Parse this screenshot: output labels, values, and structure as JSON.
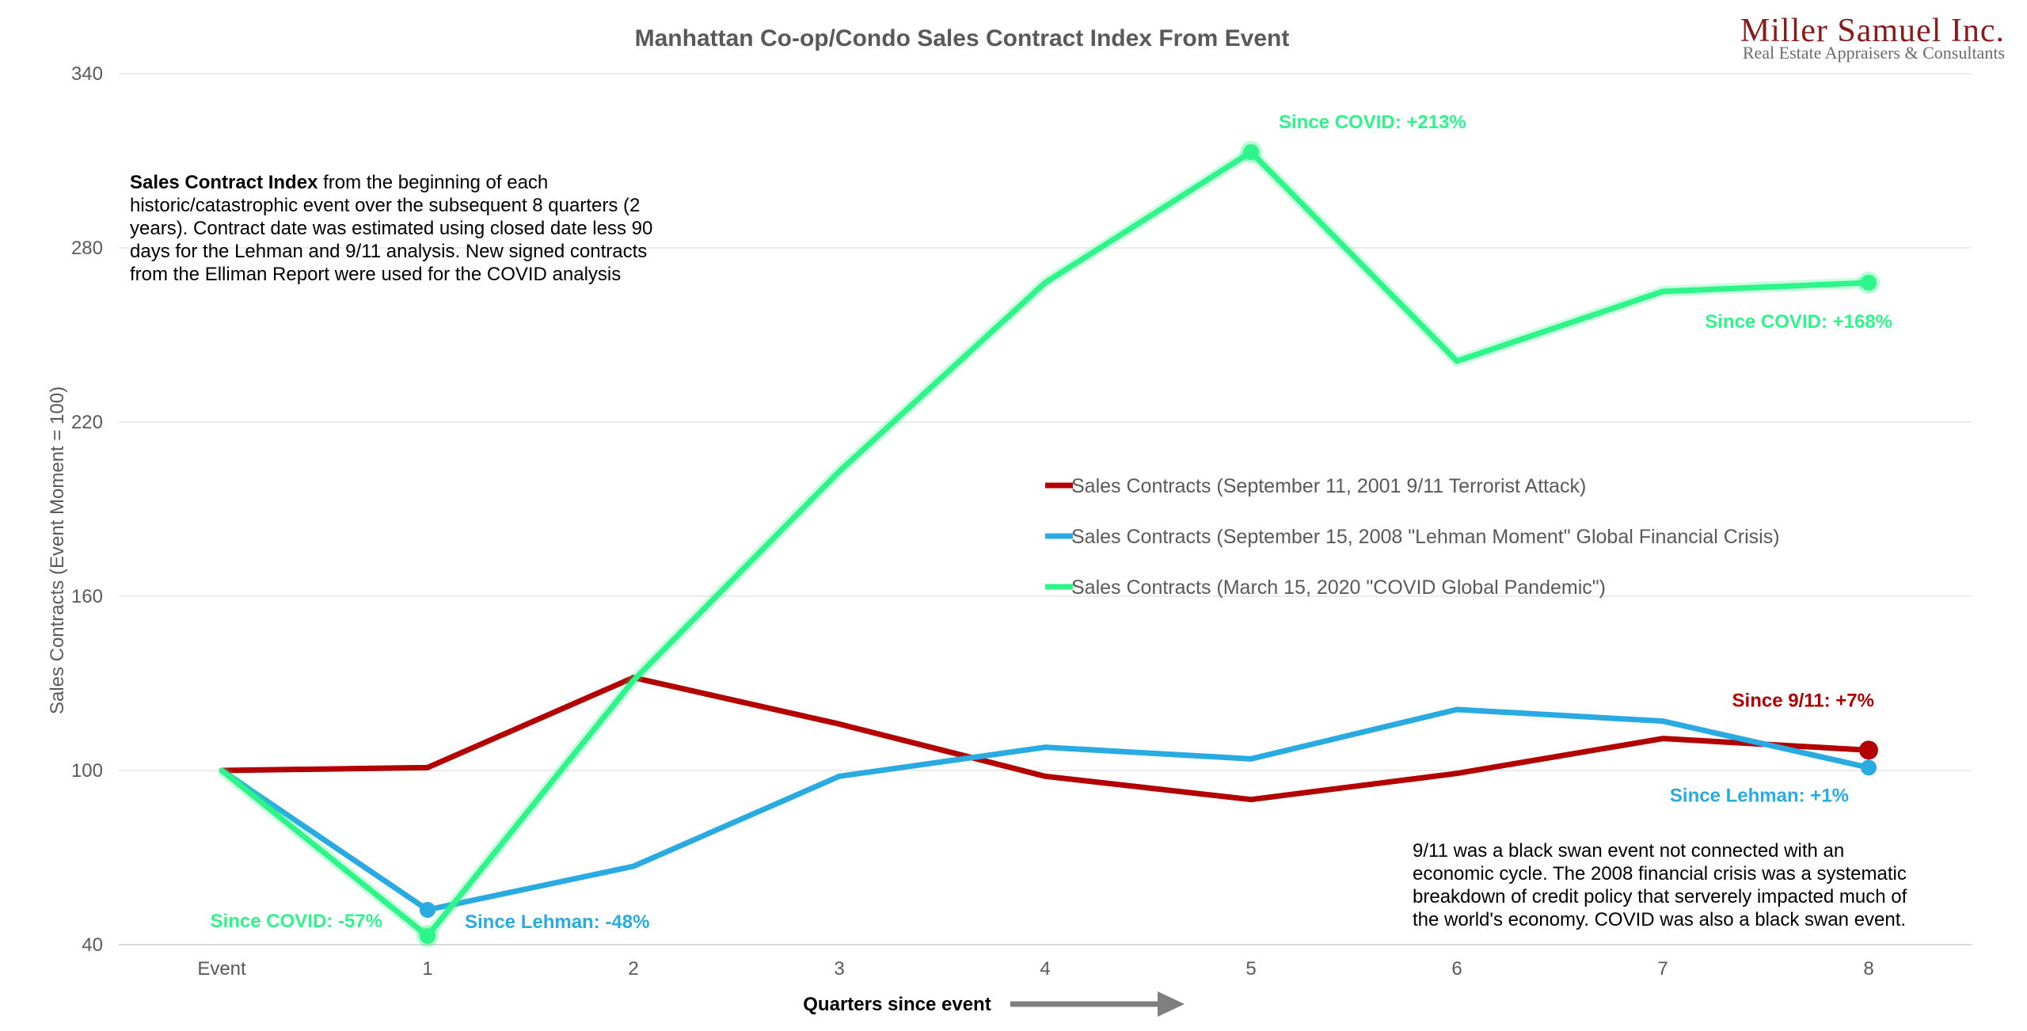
{
  "logo": {
    "name": "Miller Samuel Inc.",
    "tagline": "Real Estate Appraisers & Consultants"
  },
  "colors": {
    "nine_eleven": "#b30000",
    "lehman": "#29abe2",
    "covid": "#2ef58a",
    "grid": "#e6e6e6",
    "arrow": "#7f7f7f"
  },
  "chart_data": {
    "type": "line",
    "title": "Manhattan Co-op/Condo Sales Contract Index From Event",
    "xlabel": "Quarters since event",
    "ylabel": "Sales Contracts (Event Moment = 100)",
    "categories": [
      "Event",
      "1",
      "2",
      "3",
      "4",
      "5",
      "6",
      "7",
      "8"
    ],
    "ylim": [
      40,
      340
    ],
    "yticks": [
      40,
      100,
      160,
      220,
      280,
      340
    ],
    "grid": true,
    "legend_position": "center-right",
    "series": [
      {
        "name": "Sales Contracts (September 11, 2001 9/11 Terrorist Attack)",
        "color": "#b30000",
        "values": [
          100,
          101,
          132,
          116,
          98,
          90,
          99,
          111,
          107
        ]
      },
      {
        "name": "Sales Contracts (September 15, 2008 \"Lehman Moment\" Global Financial Crisis)",
        "color": "#29abe2",
        "values": [
          100,
          52,
          67,
          98,
          108,
          104,
          121,
          117,
          101
        ]
      },
      {
        "name": "Sales Contracts (March 15, 2020 \"COVID Global Pandemic\")",
        "color": "#2ef58a",
        "values": [
          100,
          43,
          131,
          203,
          268,
          313,
          241,
          265,
          268
        ]
      }
    ],
    "annotations": [
      {
        "text": "Since COVID: +213%",
        "series": 2,
        "index": 5,
        "color": "#2ef58a"
      },
      {
        "text": "Since COVID: +168%",
        "series": 2,
        "index": 8,
        "color": "#2ef58a"
      },
      {
        "text": "Since COVID: -57%",
        "series": 2,
        "index": 1,
        "color": "#2ef58a"
      },
      {
        "text": "Since Lehman: -48%",
        "series": 1,
        "index": 1,
        "color": "#29abe2"
      },
      {
        "text": "Since Lehman: +1%",
        "series": 1,
        "index": 8,
        "color": "#29abe2"
      },
      {
        "text": "Since 9/11: +7%",
        "series": 0,
        "index": 8,
        "color": "#b30000"
      }
    ],
    "description_bold": "Sales Contract Index",
    "description_lines": [
      " from the beginning of each",
      "historic/catastrophic event over the subsequent 8 quarters (2",
      "years). Contract date was estimated using closed date less 90",
      "days for the Lehman and 9/11 analysis. New signed contracts",
      "from the Elliman Report were used for the COVID analysis"
    ],
    "note_lines": [
      "9/11 was a black swan event not connected with an",
      "economic cycle.  The 2008 financial crisis was a systematic",
      "breakdown of credit policy that serverely impacted much of",
      "the world's economy. COVID was also a black swan event."
    ]
  }
}
